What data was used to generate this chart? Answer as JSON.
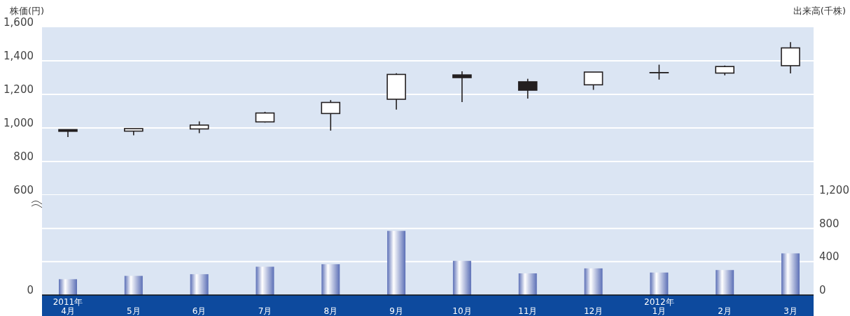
{
  "chart_data": [
    {
      "type": "candlestick",
      "ylabel": "株価(円)",
      "categories": [
        null,
        null,
        null,
        null,
        null,
        null,
        null,
        null,
        null,
        null,
        null,
        null
      ],
      "ohlc": [
        [
          990,
          992,
          946,
          980
        ],
        [
          981,
          996,
          956,
          996
        ],
        [
          994,
          1039,
          969,
          1017
        ],
        [
          1036,
          1096,
          1032,
          1089
        ],
        [
          1086,
          1166,
          984,
          1152
        ],
        [
          1171,
          1326,
          1109,
          1319
        ],
        [
          1316,
          1338,
          1154,
          1300
        ],
        [
          1275,
          1293,
          1175,
          1225
        ],
        [
          1257,
          1333,
          1227,
          1333
        ],
        [
          1329,
          1377,
          1288,
          1330
        ],
        [
          1327,
          1372,
          1314,
          1366
        ],
        [
          1371,
          1511,
          1325,
          1477
        ]
      ],
      "ylim": [
        600,
        1600
      ],
      "yticks": [
        600,
        800,
        {
          "value": 1000,
          "label": "1,000"
        },
        {
          "value": 1200,
          "label": "1,200"
        },
        {
          "value": 1400,
          "label": "1,400"
        },
        {
          "value": 1600,
          "label": "1,600"
        }
      ],
      "grid": "y",
      "tick_labels": "y"
    },
    {
      "type": "bar",
      "categories": [
        "2011年\n4月",
        "5月",
        "6月",
        "7月",
        "8月",
        "9月",
        "10月",
        "11月",
        "12月",
        "2012年\n1月",
        "2月",
        "3月"
      ],
      "series": [
        {
          "color": "#5b6fb6",
          "axis": "y2",
          "values": [
            190,
            230,
            250,
            340,
            370,
            770,
            410,
            260,
            320,
            270,
            300,
            500
          ]
        }
      ],
      "annotations": [
        "0"
      ],
      "y2lim": [
        0,
        1200
      ],
      "y2ticks": [
        0,
        400,
        800,
        {
          "value": 1200,
          "label": "1,200"
        }
      ],
      "y2label": "出来高(千株)",
      "grid": true
    }
  ]
}
